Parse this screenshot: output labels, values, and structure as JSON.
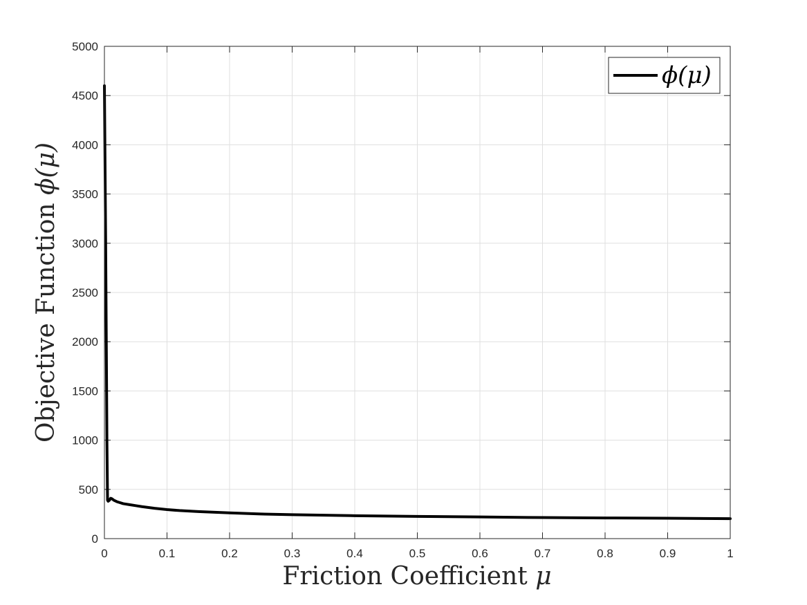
{
  "chart_data": {
    "type": "line",
    "xlabel": "Friction Coefficient ",
    "xlabel_symbol": "μ",
    "ylabel": "Objective Function ",
    "ylabel_symbol": "ϕ(μ)",
    "xlim": [
      0,
      1
    ],
    "ylim": [
      0,
      5000
    ],
    "x_ticks": [
      "0",
      "0.1",
      "0.2",
      "0.3",
      "0.4",
      "0.5",
      "0.6",
      "0.7",
      "0.8",
      "0.9",
      "1"
    ],
    "y_ticks": [
      "0",
      "500",
      "1000",
      "1500",
      "2000",
      "2500",
      "3000",
      "3500",
      "4000",
      "4500",
      "5000"
    ],
    "grid": true,
    "legend": {
      "position": "top-right",
      "entries": [
        "ϕ(μ)"
      ]
    },
    "series": [
      {
        "name": "ϕ(μ)",
        "color": "#000000",
        "x": [
          0,
          0.002,
          0.004,
          0.005,
          0.006,
          0.008,
          0.01,
          0.012,
          0.015,
          0.02,
          0.025,
          0.03,
          0.04,
          0.05,
          0.06,
          0.08,
          0.1,
          0.12,
          0.15,
          0.2,
          0.25,
          0.3,
          0.4,
          0.5,
          0.6,
          0.7,
          0.8,
          0.9,
          1.0
        ],
        "y": [
          4600,
          3000,
          1000,
          390,
          380,
          390,
          410,
          405,
          390,
          375,
          365,
          355,
          345,
          335,
          325,
          308,
          295,
          285,
          275,
          262,
          250,
          243,
          233,
          226,
          220,
          214,
          210,
          207,
          203
        ]
      }
    ]
  }
}
